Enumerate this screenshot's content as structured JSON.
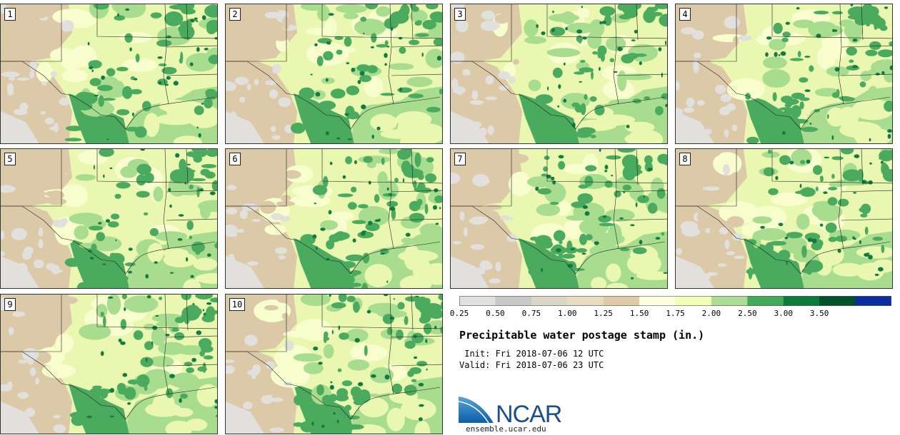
{
  "title": "Precipitable water postage stamp (in.)",
  "init_line": " Init: Fri 2018-07-06 12 UTC",
  "valid_line": "Valid: Fri 2018-07-06 23 UTC",
  "brand": {
    "logo_text": "NCAR",
    "website": "ensemble.ucar.edu"
  },
  "members": [
    "1",
    "2",
    "3",
    "4",
    "5",
    "6",
    "7",
    "8",
    "9",
    "10"
  ],
  "legend": {
    "levels": [
      "0.25",
      "0.50",
      "0.75",
      "1.00",
      "1.25",
      "1.50",
      "1.75",
      "2.00",
      "2.50",
      "3.00",
      "3.50"
    ],
    "colors": [
      "#e0e0e0",
      "#c8c8c8",
      "#dcd6c8",
      "#e8dcc0",
      "#dfcba8",
      "#ffffe0",
      "#efffb8",
      "#addc94",
      "#44aa5a",
      "#0c7a3a",
      "#00522a",
      "#0d2ea0"
    ]
  },
  "map_colors": {
    "dry_gray": "#e1e0dc",
    "tan": "#dbc9a8",
    "light_yellow": "#f7fdcc",
    "yellow_green": "#e9f7b0",
    "light_green": "#a8dc8e",
    "mid_green": "#4aaa5e",
    "dark_green": "#127c40",
    "border": "#222222"
  }
}
